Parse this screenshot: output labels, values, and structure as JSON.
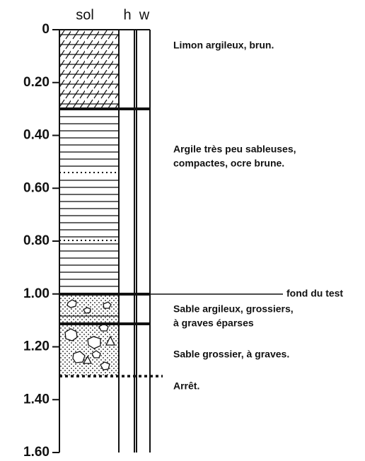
{
  "columns": [
    "sol",
    "h",
    "w"
  ],
  "depth_axis": {
    "ticks": [
      0,
      {
        "value": 0.2,
        "label": "0.20"
      },
      {
        "value": 0.4,
        "label": "0.40"
      },
      {
        "value": 0.6,
        "label": "0.60"
      },
      {
        "value": 0.8,
        "label": "0.80"
      },
      {
        "value": 1.0,
        "label": "1.00"
      },
      {
        "value": 1.2,
        "label": "1.20"
      },
      {
        "value": 1.4,
        "label": "1.40"
      },
      {
        "value": 1.6,
        "label": "1.60"
      }
    ]
  },
  "layers": [
    {
      "description": [
        "Limon argileux, brun."
      ]
    },
    {
      "description": [
        "Argile très peu sableuses,",
        "compactes, ocre brune."
      ]
    },
    {
      "description": [
        "Sable argileux, grossiers,",
        "à graves éparses"
      ]
    },
    {
      "description": [
        "Sable grossier, à graves."
      ]
    },
    {
      "description": [
        "Arrêt."
      ]
    }
  ],
  "test_bottom_label": "fond du test"
}
